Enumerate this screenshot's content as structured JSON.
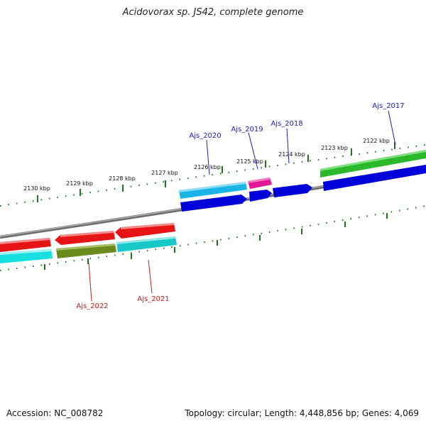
{
  "title": "Acidovorax sp. JS42, complete genome",
  "footer": {
    "accession": "Accession: NC_008782",
    "info": "Topology: circular; Length: 4,448,856 bp; Genes: 4,069"
  },
  "colors": {
    "backbone": "#808080",
    "tick": "#1a7a1a",
    "label_forward": "#1a1acc",
    "label_reverse": "#cc1a1a"
  },
  "ticks": [
    {
      "label": "2122 kbp"
    },
    {
      "label": "2123 kbp"
    },
    {
      "label": "2124 kbp"
    },
    {
      "label": "2125 kbp"
    },
    {
      "label": "2126 kbp"
    },
    {
      "label": "2127 kbp"
    },
    {
      "label": "2128 kbp"
    },
    {
      "label": "2129 kbp"
    },
    {
      "label": "2130 kbp"
    }
  ],
  "gene_labels": [
    {
      "text": "Ajs_2017",
      "strand": "forward"
    },
    {
      "text": "Ajs_2018",
      "strand": "forward"
    },
    {
      "text": "Ajs_2019",
      "strand": "forward"
    },
    {
      "text": "Ajs_2020",
      "strand": "forward"
    },
    {
      "text": "Ajs_2021",
      "strand": "reverse"
    },
    {
      "text": "Ajs_2022",
      "strand": "reverse"
    }
  ]
}
